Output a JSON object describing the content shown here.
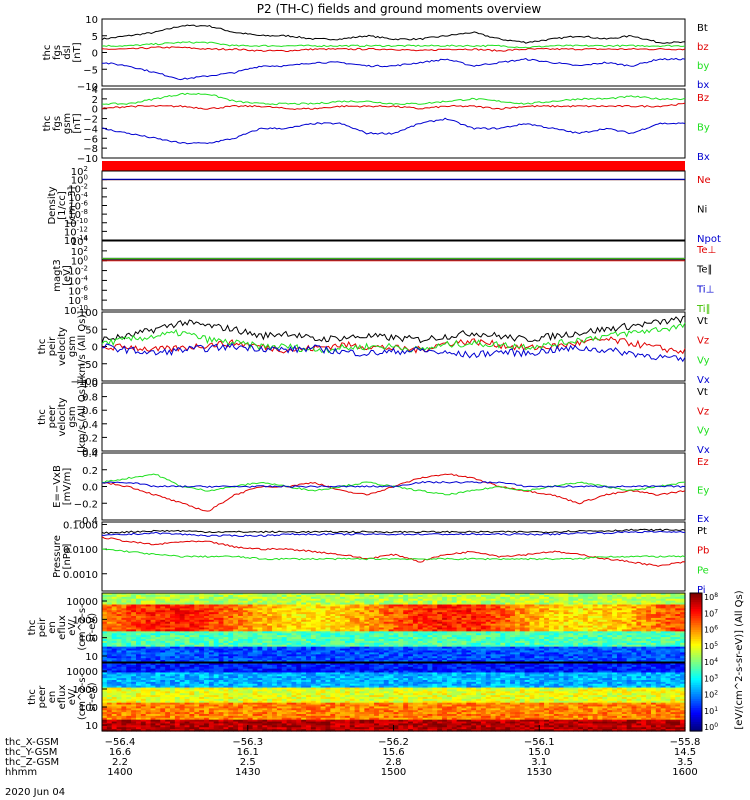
{
  "title": "P2 (TH-C) fields and ground moments overview",
  "colors": {
    "black": "#000000",
    "red": "#e00000",
    "green": "#20e020",
    "blue": "#0000d0",
    "darkgreen": "#40c000"
  },
  "chart_data": [
    {
      "id": "fgs-dsl",
      "type": "line",
      "ylabel_lines": [
        "thc",
        "fgs",
        "dsl",
        "[nT]"
      ],
      "ylim": [
        -10,
        10
      ],
      "yticks": [
        "10",
        "5",
        "0",
        "−5",
        "−10"
      ],
      "series": [
        {
          "name": "Bt",
          "color": "black",
          "values": [
            4,
            5,
            6,
            8,
            8,
            6,
            5,
            5,
            4,
            4,
            5,
            4,
            4,
            5,
            6,
            4,
            3,
            4,
            5,
            4,
            5,
            3,
            3
          ]
        },
        {
          "name": "bz",
          "color": "red",
          "values": [
            1,
            1,
            1.5,
            1.5,
            1,
            1,
            0.5,
            0.5,
            1,
            1,
            1,
            1,
            0.5,
            1,
            1,
            0.5,
            1,
            1,
            1,
            1,
            1,
            1,
            1
          ]
        },
        {
          "name": "by",
          "color": "green",
          "values": [
            2,
            2,
            2.5,
            3,
            3,
            2,
            2,
            2,
            2,
            2,
            2,
            2,
            2,
            2,
            2,
            2,
            1.5,
            2,
            2,
            2,
            2,
            2,
            2
          ]
        },
        {
          "name": "bx",
          "color": "blue",
          "values": [
            -3,
            -4,
            -6,
            -8,
            -7,
            -6,
            -4,
            -4,
            -3,
            -3,
            -4,
            -4,
            -3,
            -2,
            -4,
            -3,
            -2,
            -3,
            -4,
            -3,
            -4,
            -2,
            -2
          ]
        }
      ]
    },
    {
      "id": "fgs-gsm",
      "type": "line",
      "ylabel_lines": [
        "thc",
        "fgs",
        "gsm",
        "[nT]"
      ],
      "ylim": [
        -10,
        4
      ],
      "yticks": [
        "4",
        "2",
        "0",
        "−2",
        "−4",
        "−6",
        "−8",
        "−10"
      ],
      "series": [
        {
          "name": "Bz",
          "color": "red",
          "values": [
            0,
            0.5,
            0.5,
            0.5,
            0,
            0.5,
            0.5,
            0,
            0,
            0.5,
            0.5,
            0.5,
            0,
            0.5,
            0.5,
            0,
            0.5,
            0.5,
            0.5,
            0.5,
            0.5,
            0.5,
            1
          ]
        },
        {
          "name": "By",
          "color": "green",
          "values": [
            1,
            1,
            2,
            3,
            3,
            1.5,
            1,
            1,
            1,
            1.5,
            1.5,
            1,
            1,
            1.5,
            2,
            1.5,
            1,
            1.5,
            2,
            2,
            2.5,
            2,
            2
          ]
        },
        {
          "name": "Bx",
          "color": "blue",
          "values": [
            -4,
            -5,
            -6,
            -7,
            -7,
            -6,
            -4,
            -4,
            -3,
            -3,
            -5,
            -5,
            -3,
            -2,
            -4,
            -4,
            -3,
            -4,
            -5,
            -4,
            -5,
            -3,
            -3
          ]
        }
      ]
    },
    {
      "id": "density",
      "type": "line",
      "log": true,
      "ylabel_lines": [
        "Density",
        "[1/cc]",
        "[cm−3]"
      ],
      "ylim_exp": [
        -14,
        2
      ],
      "yticks_exp": [
        2,
        0,
        -2,
        -4,
        -6,
        -8,
        -10,
        -12,
        -14
      ],
      "series": [
        {
          "name": "Ne",
          "color": "red",
          "values": [
            1,
            1,
            1,
            1,
            1,
            1,
            1,
            1,
            1,
            1,
            1,
            1
          ]
        },
        {
          "name": "Ni",
          "color": "black",
          "values": [
            1,
            1,
            1,
            1,
            1,
            1,
            1,
            1,
            1,
            1,
            1,
            1
          ]
        },
        {
          "name": "Npot",
          "color": "blue",
          "values": [
            1.2,
            1.2,
            1.2,
            1.2,
            1.2,
            1.2,
            1.2,
            1.2,
            1.2,
            1.2,
            1.2,
            1.2
          ]
        }
      ]
    },
    {
      "id": "temperature",
      "type": "line",
      "log": true,
      "ylabel_lines": [
        "magt3",
        "[eV]"
      ],
      "ylim_exp": [
        -10,
        4
      ],
      "yticks_exp": [
        4,
        2,
        0,
        -2,
        -4,
        -6,
        -8,
        -10
      ],
      "series": [
        {
          "name": "Te⊥",
          "color": "red",
          "values": [
            1,
            1,
            1,
            1,
            1,
            1,
            1,
            1,
            1,
            1,
            1,
            1
          ]
        },
        {
          "name": "Te∥",
          "color": "black",
          "values": [
            1.5,
            1.5,
            1.5,
            1.5,
            1.5,
            1.5,
            1.5,
            1.5,
            1.5,
            1.5,
            1.5,
            1.5
          ]
        },
        {
          "name": "Ti⊥",
          "color": "blue",
          "values": [
            3,
            3,
            3,
            3,
            3,
            3,
            3,
            3,
            3,
            3,
            3,
            3
          ]
        },
        {
          "name": "Ti∥",
          "color": "darkgreen",
          "values": [
            3,
            3,
            3,
            3,
            3,
            3,
            3,
            3,
            3,
            3,
            3,
            3
          ]
        }
      ]
    },
    {
      "id": "peir-velocity",
      "type": "line",
      "ylabel_lines": [
        "thc",
        "peir",
        "velocity",
        "gsm",
        "[km/s (All Qs)]"
      ],
      "ylim": [
        -100,
        100
      ],
      "yticks": [
        "100",
        "50",
        "0",
        "−50",
        "−100"
      ],
      "series": [
        {
          "name": "Vt",
          "color": "black",
          "values": [
            20,
            30,
            50,
            70,
            60,
            50,
            30,
            40,
            20,
            25,
            30,
            25,
            20,
            30,
            40,
            30,
            20,
            30,
            40,
            50,
            60,
            70,
            80
          ]
        },
        {
          "name": "Vz",
          "color": "red",
          "values": [
            -5,
            0,
            -10,
            -5,
            5,
            10,
            0,
            -10,
            -5,
            5,
            0,
            -5,
            -10,
            10,
            15,
            5,
            -5,
            0,
            10,
            20,
            10,
            -5,
            -15
          ]
        },
        {
          "name": "Vy",
          "color": "green",
          "values": [
            10,
            20,
            30,
            40,
            20,
            10,
            0,
            0,
            -10,
            -5,
            0,
            0,
            -10,
            5,
            10,
            5,
            0,
            5,
            20,
            30,
            40,
            50,
            60
          ]
        },
        {
          "name": "Vx",
          "color": "blue",
          "values": [
            0,
            -10,
            -20,
            -10,
            -5,
            0,
            -5,
            -10,
            -5,
            -15,
            -20,
            -15,
            -10,
            -20,
            -25,
            -15,
            -20,
            -10,
            -5,
            -10,
            -20,
            -30,
            -40
          ]
        }
      ]
    },
    {
      "id": "peer-velocity",
      "type": "line",
      "ylabel_lines": [
        "thc",
        "peer",
        "velocity",
        "gsm",
        "[km/s (All Qs)]"
      ],
      "ylim": [
        0,
        1
      ],
      "yticks": [
        "1.0",
        "0.8",
        "0.6",
        "0.4",
        "0.2",
        "0.0"
      ],
      "series": [
        {
          "name": "Vt",
          "color": "black",
          "values": []
        },
        {
          "name": "Vz",
          "color": "red",
          "values": []
        },
        {
          "name": "Vy",
          "color": "green",
          "values": []
        },
        {
          "name": "Vx",
          "color": "blue",
          "values": []
        }
      ]
    },
    {
      "id": "efield",
      "type": "line",
      "ylabel_lines": [
        "E=−VxB",
        "[mV/m]"
      ],
      "ylim": [
        -0.4,
        0.4
      ],
      "yticks": [
        "0.4",
        "0.2",
        "0.0",
        "−0.2",
        "−0.4"
      ],
      "series": [
        {
          "name": "Ez",
          "color": "red",
          "values": [
            0.05,
            0.0,
            -0.1,
            -0.2,
            -0.3,
            -0.1,
            0.0,
            0.0,
            0.05,
            -0.05,
            -0.1,
            0.0,
            0.1,
            0.15,
            0.1,
            0.0,
            -0.05,
            -0.1,
            -0.2,
            -0.1,
            -0.05,
            -0.1,
            -0.05
          ]
        },
        {
          "name": "Ey",
          "color": "green",
          "values": [
            0.05,
            0.1,
            0.15,
            0.0,
            -0.05,
            0.0,
            0.05,
            0.0,
            -0.05,
            0.0,
            0.05,
            0.0,
            -0.05,
            -0.1,
            -0.05,
            0.0,
            -0.05,
            0.0,
            0.05,
            0.0,
            -0.05,
            0.0,
            0.05
          ]
        },
        {
          "name": "Ex",
          "color": "blue",
          "values": [
            0.05,
            0.05,
            0.0,
            0.0,
            0.0,
            0.0,
            0.0,
            0.0,
            0.0,
            0.0,
            0.0,
            0.0,
            0.05,
            0.05,
            0.05,
            0.05,
            0.0,
            0.0,
            0.0,
            0.0,
            0.0,
            0.0,
            0.0
          ]
        }
      ]
    },
    {
      "id": "pressure",
      "type": "line",
      "log": true,
      "ylabel_lines": [
        "Pressure",
        "[nPa]"
      ],
      "ylim_exp": [
        -3.7,
        -0.9
      ],
      "ytick_labels": [
        "0.1000",
        "0.0100",
        "0.0010"
      ],
      "yticks_exp": [
        -1,
        -2,
        -3
      ],
      "series": [
        {
          "name": "Pt",
          "color": "black",
          "values": [
            0.045,
            0.05,
            0.055,
            0.055,
            0.05,
            0.05,
            0.05,
            0.05,
            0.05,
            0.05,
            0.05,
            0.05,
            0.05,
            0.05,
            0.05,
            0.05,
            0.05,
            0.05,
            0.055,
            0.055,
            0.06,
            0.06,
            0.06
          ]
        },
        {
          "name": "Pb",
          "color": "red",
          "values": [
            0.03,
            0.02,
            0.015,
            0.02,
            0.02,
            0.012,
            0.01,
            0.01,
            0.008,
            0.006,
            0.004,
            0.006,
            0.003,
            0.006,
            0.008,
            0.005,
            0.006,
            0.008,
            0.006,
            0.004,
            0.003,
            0.002,
            0.003
          ]
        },
        {
          "name": "Pe",
          "color": "green",
          "values": [
            0.01,
            0.008,
            0.006,
            0.005,
            0.005,
            0.005,
            0.004,
            0.004,
            0.004,
            0.004,
            0.004,
            0.004,
            0.004,
            0.004,
            0.004,
            0.004,
            0.004,
            0.004,
            0.004,
            0.005,
            0.005,
            0.005,
            0.005
          ]
        },
        {
          "name": "Pi",
          "color": "blue",
          "values": [
            0.035,
            0.04,
            0.045,
            0.04,
            0.035,
            0.035,
            0.035,
            0.04,
            0.04,
            0.04,
            0.04,
            0.04,
            0.04,
            0.04,
            0.04,
            0.04,
            0.04,
            0.04,
            0.045,
            0.045,
            0.05,
            0.05,
            0.05
          ]
        }
      ]
    },
    {
      "id": "peir-eflux",
      "type": "heatmap",
      "log": true,
      "ylabel_lines": [
        "thc",
        "peir",
        "en",
        "eflux",
        "eV/",
        "(cm^2-s-",
        "sr-eV)"
      ],
      "ytick_labels": [
        "10000",
        "1000",
        "100",
        "10"
      ]
    },
    {
      "id": "peer-eflux",
      "type": "heatmap",
      "log": true,
      "ylabel_lines": [
        "thc",
        "peer",
        "en",
        "eflux",
        "eV/",
        "(cm^2-s-",
        "sr-eV)"
      ],
      "ytick_labels": [
        "10000",
        "1000",
        "100",
        "10"
      ]
    }
  ],
  "colorbar": {
    "label": "[eV/(cm^2-s-sr-eV)] (All Qs)",
    "tick_exps": [
      8,
      7,
      6,
      5,
      4,
      3,
      2,
      1,
      0
    ],
    "tick_base": "10"
  },
  "xaxis": {
    "rows": [
      {
        "label": "thc_X-GSM",
        "values": [
          "−56.4",
          "−56.3",
          "−56.2",
          "−56.1",
          "−55.8"
        ]
      },
      {
        "label": "thc_Y-GSM",
        "values": [
          "16.6",
          "16.1",
          "15.6",
          "15.0",
          "14.5"
        ]
      },
      {
        "label": "thc_Z-GSM",
        "values": [
          "2.2",
          "2.5",
          "2.8",
          "3.1",
          "3.5"
        ]
      },
      {
        "label": "hhmm",
        "values": [
          "1400",
          "1430",
          "1500",
          "1530",
          "1600"
        ]
      }
    ],
    "date": "2020 Jun 04"
  }
}
